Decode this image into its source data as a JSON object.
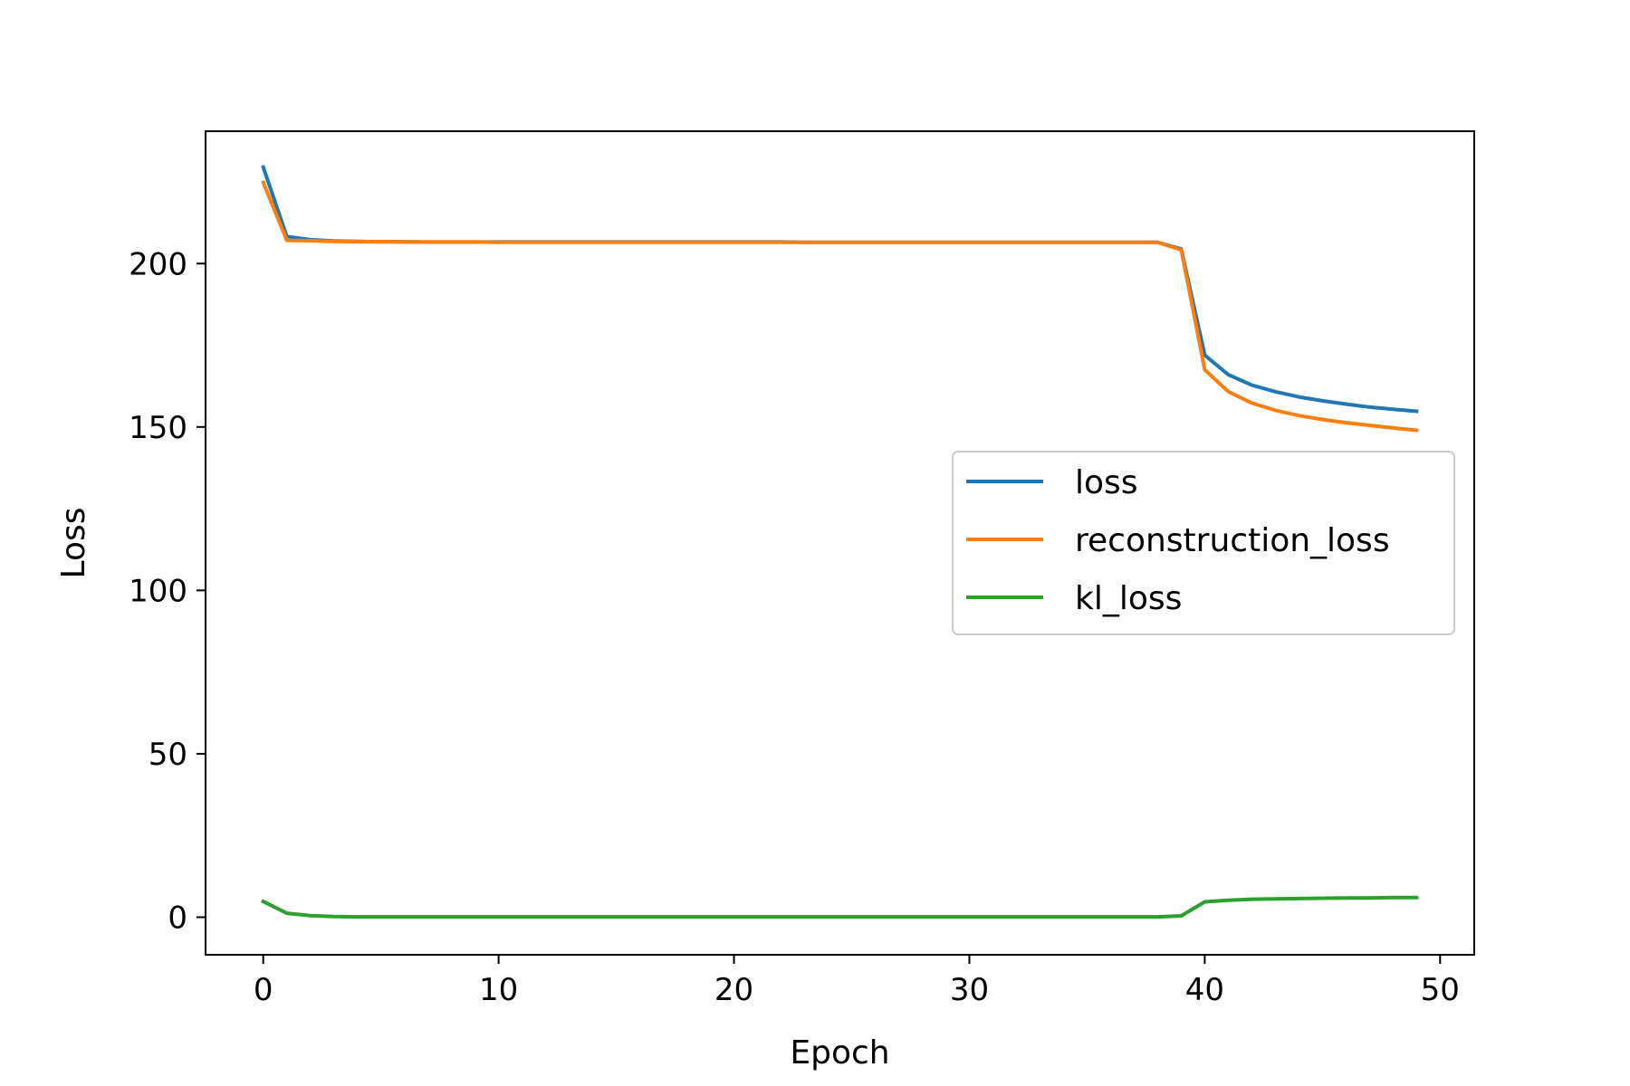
{
  "chart_data": {
    "type": "line",
    "title": "",
    "xlabel": "Epoch",
    "ylabel": "Loss",
    "xlim": [
      -2.45,
      51.45
    ],
    "ylim": [
      -11.5,
      240.5
    ],
    "xticks": [
      0,
      10,
      20,
      30,
      40,
      50
    ],
    "yticks": [
      0,
      50,
      100,
      150,
      200
    ],
    "grid": false,
    "legend_position": "center-right",
    "x": [
      0,
      1,
      2,
      3,
      4,
      5,
      6,
      7,
      8,
      9,
      10,
      11,
      12,
      13,
      14,
      15,
      16,
      17,
      18,
      19,
      20,
      21,
      22,
      23,
      24,
      25,
      26,
      27,
      28,
      29,
      30,
      31,
      32,
      33,
      34,
      35,
      36,
      37,
      38,
      39,
      40,
      41,
      42,
      43,
      44,
      45,
      46,
      47,
      48,
      49
    ],
    "series": [
      {
        "name": "loss",
        "color": "#1f77b4",
        "values": [
          229.5,
          208.3,
          207.3,
          206.9,
          206.8,
          206.7,
          206.7,
          206.6,
          206.6,
          206.6,
          206.6,
          206.6,
          206.6,
          206.6,
          206.6,
          206.6,
          206.6,
          206.6,
          206.6,
          206.6,
          206.6,
          206.6,
          206.6,
          206.5,
          206.5,
          206.5,
          206.5,
          206.5,
          206.5,
          206.5,
          206.5,
          206.5,
          206.5,
          206.5,
          206.5,
          206.5,
          206.5,
          206.5,
          206.5,
          204.5,
          172.0,
          166.0,
          162.8,
          160.8,
          159.2,
          158.0,
          157.0,
          156.1,
          155.4,
          154.8
        ]
      },
      {
        "name": "reconstruction_loss",
        "color": "#ff7f0e",
        "values": [
          224.8,
          207.1,
          207.0,
          206.8,
          206.7,
          206.7,
          206.6,
          206.6,
          206.6,
          206.6,
          206.5,
          206.5,
          206.5,
          206.5,
          206.5,
          206.5,
          206.5,
          206.5,
          206.5,
          206.5,
          206.5,
          206.5,
          206.5,
          206.5,
          206.5,
          206.5,
          206.5,
          206.5,
          206.5,
          206.5,
          206.5,
          206.5,
          206.5,
          206.5,
          206.5,
          206.5,
          206.5,
          206.5,
          206.5,
          204.2,
          167.5,
          160.8,
          157.3,
          155.1,
          153.5,
          152.3,
          151.3,
          150.5,
          149.7,
          149.0
        ]
      },
      {
        "name": "kl_loss",
        "color": "#2ca02c",
        "values": [
          4.8,
          1.2,
          0.5,
          0.2,
          0.1,
          0.1,
          0.1,
          0.1,
          0.1,
          0.1,
          0.1,
          0.1,
          0.1,
          0.1,
          0.1,
          0.1,
          0.1,
          0.1,
          0.1,
          0.1,
          0.1,
          0.1,
          0.1,
          0.1,
          0.1,
          0.1,
          0.1,
          0.1,
          0.1,
          0.1,
          0.1,
          0.1,
          0.1,
          0.1,
          0.1,
          0.1,
          0.1,
          0.1,
          0.1,
          0.4,
          4.7,
          5.2,
          5.5,
          5.6,
          5.7,
          5.8,
          5.9,
          5.9,
          6.0,
          6.0
        ]
      }
    ]
  }
}
